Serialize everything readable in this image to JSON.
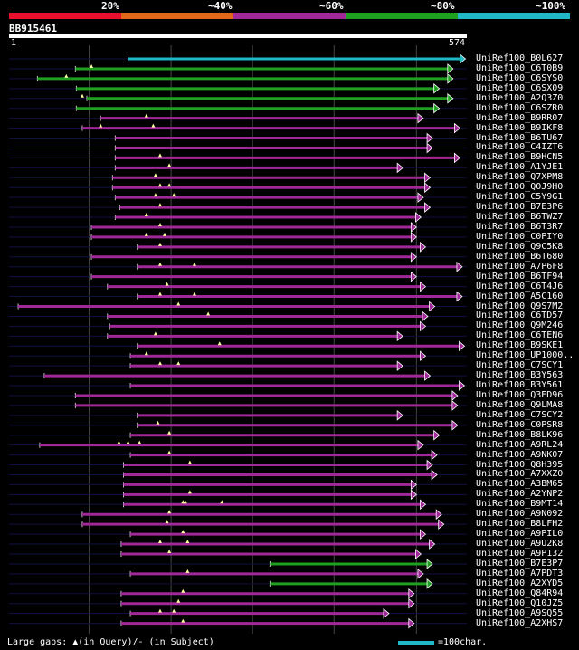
{
  "legend": {
    "segments": [
      {
        "label": "",
        "color": "#e8102c"
      },
      {
        "label": "20%",
        "color": "#e06818"
      },
      {
        "label": "~40%",
        "color": "#a02898"
      },
      {
        "label": "~60%",
        "color": "#20a020"
      },
      {
        "label": "~80%",
        "color": "#20b8c8"
      }
    ],
    "labels": [
      "20%",
      "~40%",
      "~60%",
      "~80%",
      "~100%"
    ]
  },
  "query": {
    "id": "BB915461",
    "start": "1",
    "end": "574"
  },
  "colors": {
    "green": "#20a020",
    "purple": "#a02898",
    "cyan": "#20b8c8"
  },
  "hits": [
    {
      "name": "UniRef100_B0L627",
      "color": "cyan",
      "start": 0.26,
      "end": 0.997,
      "tail": 0,
      "marks": []
    },
    {
      "name": "UniRef100_C6T0B9",
      "color": "green",
      "start": 0.145,
      "end": 0.97,
      "tail": 0,
      "marks": [
        0.18
      ]
    },
    {
      "name": "UniRef100_C6SYS0",
      "color": "green",
      "start": 0.062,
      "end": 0.97,
      "tail": 0,
      "marks": [
        0.125
      ]
    },
    {
      "name": "UniRef100_C6SX09",
      "color": "green",
      "start": 0.147,
      "end": 0.94,
      "tail": 0,
      "marks": []
    },
    {
      "name": "UniRef100_A2Q3Z0",
      "color": "green",
      "start": 0.17,
      "end": 0.97,
      "tail": 0,
      "marks": [
        0.16
      ]
    },
    {
      "name": "UniRef100_C6SZR0",
      "color": "green",
      "start": 0.147,
      "end": 0.94,
      "tail": 0,
      "marks": []
    },
    {
      "name": "UniRef100_B9RR07",
      "color": "purple",
      "start": 0.2,
      "end": 0.905,
      "tail": 0,
      "marks": [
        0.3
      ]
    },
    {
      "name": "UniRef100_B9IKF8",
      "color": "purple",
      "start": 0.16,
      "end": 0.985,
      "tail": 0,
      "marks": [
        0.2,
        0.315
      ]
    },
    {
      "name": "UniRef100_B6TU67",
      "color": "purple",
      "start": 0.232,
      "end": 0.925,
      "tail": 0,
      "marks": []
    },
    {
      "name": "UniRef100_C4IZT6",
      "color": "purple",
      "start": 0.232,
      "end": 0.925,
      "tail": 0,
      "marks": []
    },
    {
      "name": "UniRef100_B9HCN5",
      "color": "purple",
      "start": 0.232,
      "end": 0.985,
      "tail": 0,
      "marks": [
        0.33
      ]
    },
    {
      "name": "UniRef100_A1YJE1",
      "color": "purple",
      "start": 0.232,
      "end": 0.86,
      "tail": 0,
      "marks": [
        0.35
      ]
    },
    {
      "name": "UniRef100_Q7XPM8",
      "color": "purple",
      "start": 0.226,
      "end": 0.92,
      "tail": 0,
      "marks": [
        0.32
      ]
    },
    {
      "name": "UniRef100_Q0J9H0",
      "color": "purple",
      "start": 0.226,
      "end": 0.92,
      "tail": 0,
      "marks": [
        0.33,
        0.35
      ]
    },
    {
      "name": "UniRef100_C5Y9G1",
      "color": "purple",
      "start": 0.232,
      "end": 0.905,
      "tail": 0,
      "marks": [
        0.32,
        0.36
      ]
    },
    {
      "name": "UniRef100_B7E3P6",
      "color": "purple",
      "start": 0.242,
      "end": 0.92,
      "tail": 0,
      "marks": [
        0.33
      ]
    },
    {
      "name": "UniRef100_B6TWZ7",
      "color": "purple",
      "start": 0.232,
      "end": 0.9,
      "tail": 0,
      "marks": [
        0.3
      ]
    },
    {
      "name": "UniRef100_B6T3R7",
      "color": "purple",
      "start": 0.18,
      "end": 0.89,
      "tail": 0,
      "marks": [
        0.33
      ]
    },
    {
      "name": "UniRef100_C0PIY0",
      "color": "purple",
      "start": 0.18,
      "end": 0.89,
      "tail": 0,
      "marks": [
        0.3,
        0.34
      ]
    },
    {
      "name": "UniRef100_Q9C5K8",
      "color": "purple",
      "start": 0.28,
      "end": 0.91,
      "tail": 0,
      "marks": [
        0.33
      ]
    },
    {
      "name": "UniRef100_B6T680",
      "color": "purple",
      "start": 0.18,
      "end": 0.89,
      "tail": 0,
      "marks": []
    },
    {
      "name": "UniRef100_A7P6F8",
      "color": "purple",
      "start": 0.28,
      "end": 0.99,
      "tail": 0,
      "marks": [
        0.33,
        0.405
      ]
    },
    {
      "name": "UniRef100_B6TF94",
      "color": "purple",
      "start": 0.18,
      "end": 0.89,
      "tail": 0,
      "marks": []
    },
    {
      "name": "UniRef100_C6T4J6",
      "color": "purple",
      "start": 0.215,
      "end": 0.91,
      "tail": 0,
      "marks": [
        0.345
      ]
    },
    {
      "name": "UniRef100_A5C160",
      "color": "purple",
      "start": 0.28,
      "end": 0.99,
      "tail": 0,
      "marks": [
        0.33,
        0.405
      ]
    },
    {
      "name": "UniRef100_Q9S7M2",
      "color": "purple",
      "start": 0.02,
      "end": 0.93,
      "tail": 0,
      "marks": [
        0.37
      ]
    },
    {
      "name": "UniRef100_C6TD57",
      "color": "purple",
      "start": 0.215,
      "end": 0.915,
      "tail": 0,
      "marks": [
        0.435
      ]
    },
    {
      "name": "UniRef100_Q9M246",
      "color": "purple",
      "start": 0.22,
      "end": 0.91,
      "tail": 0,
      "marks": []
    },
    {
      "name": "UniRef100_C6TEN6",
      "color": "purple",
      "start": 0.215,
      "end": 0.86,
      "tail": 0,
      "marks": [
        0.32
      ]
    },
    {
      "name": "UniRef100_B9SKE1",
      "color": "purple",
      "start": 0.28,
      "end": 0.995,
      "tail": 0,
      "marks": [
        0.46
      ]
    },
    {
      "name": "UniRef100_UP1000..",
      "color": "purple",
      "start": 0.265,
      "end": 0.91,
      "tail": 0,
      "marks": [
        0.3
      ]
    },
    {
      "name": "UniRef100_C7SCY1",
      "color": "purple",
      "start": 0.265,
      "end": 0.86,
      "tail": 0,
      "marks": [
        0.33,
        0.37
      ]
    },
    {
      "name": "UniRef100_B3Y563",
      "color": "purple",
      "start": 0.077,
      "end": 0.92,
      "tail": 0,
      "marks": []
    },
    {
      "name": "UniRef100_B3Y561",
      "color": "purple",
      "start": 0.265,
      "end": 0.995,
      "tail": 0,
      "marks": []
    },
    {
      "name": "UniRef100_Q3ED96",
      "color": "purple",
      "start": 0.145,
      "end": 0.98,
      "tail": 0,
      "marks": []
    },
    {
      "name": "UniRef100_Q9LMA8",
      "color": "purple",
      "start": 0.145,
      "end": 0.98,
      "tail": 0,
      "marks": []
    },
    {
      "name": "UniRef100_C7SCY2",
      "color": "purple",
      "start": 0.28,
      "end": 0.86,
      "tail": 0,
      "marks": []
    },
    {
      "name": "UniRef100_C0PSR8",
      "color": "purple",
      "start": 0.28,
      "end": 0.98,
      "tail": 0,
      "marks": [
        0.325
      ]
    },
    {
      "name": "UniRef100_B8LK96",
      "color": "purple",
      "start": 0.265,
      "end": 0.94,
      "tail": 0,
      "marks": [
        0.35
      ]
    },
    {
      "name": "UniRef100_A9RL24",
      "color": "purple",
      "start": 0.067,
      "end": 0.905,
      "tail": 0,
      "marks": [
        0.24,
        0.26,
        0.285
      ]
    },
    {
      "name": "UniRef100_A9NK07",
      "color": "purple",
      "start": 0.265,
      "end": 0.935,
      "tail": 0,
      "marks": [
        0.35
      ]
    },
    {
      "name": "UniRef100_Q8H395",
      "color": "purple",
      "start": 0.25,
      "end": 0.925,
      "tail": 0,
      "marks": [
        0.395
      ]
    },
    {
      "name": "UniRef100_A7XXZ0",
      "color": "purple",
      "start": 0.25,
      "end": 0.935,
      "tail": 0,
      "marks": []
    },
    {
      "name": "UniRef100_A3BM65",
      "color": "purple",
      "start": 0.25,
      "end": 0.89,
      "tail": 0,
      "marks": []
    },
    {
      "name": "UniRef100_A2YNP2",
      "color": "purple",
      "start": 0.25,
      "end": 0.89,
      "tail": 0,
      "marks": [
        0.395
      ]
    },
    {
      "name": "UniRef100_B9MT14",
      "color": "purple",
      "start": 0.25,
      "end": 0.91,
      "tail": 0,
      "marks": [
        0.38,
        0.385,
        0.465
      ]
    },
    {
      "name": "UniRef100_A9N092",
      "color": "purple",
      "start": 0.16,
      "end": 0.945,
      "tail": 0,
      "marks": [
        0.35
      ]
    },
    {
      "name": "UniRef100_B8LFH2",
      "color": "purple",
      "start": 0.16,
      "end": 0.95,
      "tail": 0,
      "marks": [
        0.345
      ]
    },
    {
      "name": "UniRef100_A9PIL0",
      "color": "purple",
      "start": 0.265,
      "end": 0.91,
      "tail": 0,
      "marks": [
        0.38
      ]
    },
    {
      "name": "UniRef100_A9U2K8",
      "color": "purple",
      "start": 0.245,
      "end": 0.93,
      "tail": 0,
      "marks": [
        0.33,
        0.39
      ]
    },
    {
      "name": "UniRef100_A9P132",
      "color": "purple",
      "start": 0.245,
      "end": 0.9,
      "tail": 0,
      "marks": [
        0.35
      ]
    },
    {
      "name": "UniRef100_B7E3P7",
      "color": "green",
      "start": 0.57,
      "end": 0.925,
      "tail": 0,
      "marks": []
    },
    {
      "name": "UniRef100_A7PDT3",
      "color": "purple",
      "start": 0.265,
      "end": 0.905,
      "tail": 0,
      "marks": [
        0.39
      ]
    },
    {
      "name": "UniRef100_A2XYD5",
      "color": "green",
      "start": 0.57,
      "end": 0.925,
      "tail": 0,
      "marks": []
    },
    {
      "name": "UniRef100_Q84R94",
      "color": "purple",
      "start": 0.245,
      "end": 0.885,
      "tail": 0,
      "marks": [
        0.38
      ]
    },
    {
      "name": "UniRef100_Q10JZ5",
      "color": "purple",
      "start": 0.245,
      "end": 0.885,
      "tail": 0,
      "marks": [
        0.37
      ]
    },
    {
      "name": "UniRef100_A9SQ55",
      "color": "purple",
      "start": 0.265,
      "end": 0.83,
      "tail": 0,
      "marks": [
        0.33,
        0.36
      ]
    },
    {
      "name": "UniRef100_A2XHS7",
      "color": "purple",
      "start": 0.245,
      "end": 0.885,
      "tail": 0,
      "marks": [
        0.38
      ]
    }
  ],
  "footer": {
    "note": "Large gaps: ▲(in Query)/- (in Subject)",
    "scale": "=100char."
  }
}
